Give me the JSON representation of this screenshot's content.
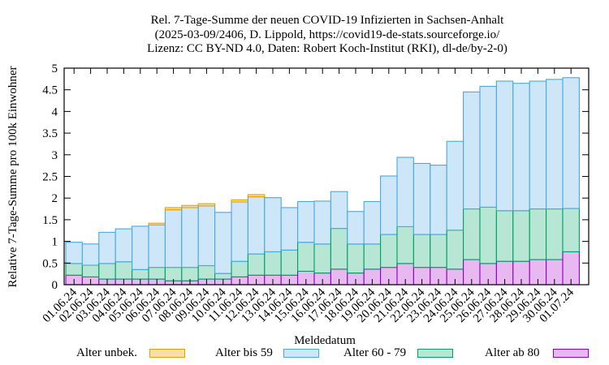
{
  "chart_data": {
    "type": "bar",
    "stacked": true,
    "title_lines": [
      "Rel. 7-Tage-Summe der neuen COVID-19 Infizierten in Sachsen-Anhalt",
      "(2025-03-09/2406, D. Lippold, https://covid19-de-stats.sourceforge.io/",
      "Lizenz: CC BY-ND 4.0, Daten: Robert Koch-Institut (RKI), dl-de/by-2-0)"
    ],
    "xlabel": "Meldedatum",
    "ylabel": "Relative 7-Tage-Summe pro 100k Einwohner",
    "ylim": [
      0,
      5
    ],
    "yticks": [
      "0",
      "0.5",
      "1",
      "1.5",
      "2",
      "2.5",
      "3",
      "3.5",
      "4",
      "4.5",
      "5"
    ],
    "grid": false,
    "legend_position": "bottom",
    "categories": [
      "01.06.24",
      "02.06.24",
      "03.06.24",
      "04.06.24",
      "05.06.24",
      "06.06.24",
      "07.06.24",
      "08.06.24",
      "09.06.24",
      "10.06.24",
      "11.06.24",
      "12.06.24",
      "13.06.24",
      "14.06.24",
      "15.06.24",
      "16.06.24",
      "17.06.24",
      "18.06.24",
      "19.06.24",
      "20.06.24",
      "21.06.24",
      "22.06.24",
      "23.06.24",
      "24.06.24",
      "25.06.24",
      "26.06.24",
      "27.06.24",
      "28.06.24",
      "29.06.24",
      "30.06.24",
      "01.07.24"
    ],
    "series": [
      {
        "name": "Alter ab 80",
        "color": "#e8b8f0",
        "stroke": "#8a00c8",
        "values": [
          0.22,
          0.18,
          0.13,
          0.13,
          0.13,
          0.13,
          0.09,
          0.09,
          0.13,
          0.13,
          0.18,
          0.22,
          0.22,
          0.22,
          0.31,
          0.27,
          0.36,
          0.27,
          0.36,
          0.4,
          0.49,
          0.4,
          0.4,
          0.36,
          0.58,
          0.49,
          0.54,
          0.54,
          0.58,
          0.58,
          0.76
        ]
      },
      {
        "name": "Alter 60 - 79",
        "color": "#b8e6d5",
        "stroke": "#00a060",
        "values": [
          0.27,
          0.27,
          0.36,
          0.4,
          0.22,
          0.27,
          0.31,
          0.31,
          0.31,
          0.13,
          0.36,
          0.49,
          0.54,
          0.58,
          0.67,
          0.67,
          0.94,
          0.67,
          0.58,
          0.76,
          0.85,
          0.76,
          0.76,
          0.9,
          1.17,
          1.3,
          1.17,
          1.17,
          1.17,
          1.17,
          1.0
        ]
      },
      {
        "name": "Alter bis 59",
        "color": "#cde6f8",
        "stroke": "#4aa8e0",
        "values": [
          0.49,
          0.49,
          0.72,
          0.76,
          1.0,
          0.98,
          1.33,
          1.38,
          1.38,
          1.41,
          1.37,
          1.32,
          1.25,
          0.98,
          0.94,
          0.99,
          0.85,
          0.75,
          0.98,
          1.35,
          1.6,
          1.64,
          1.6,
          2.05,
          2.7,
          2.79,
          2.99,
          2.94,
          2.95,
          2.99,
          3.02
        ]
      },
      {
        "name": "Alter unbek.",
        "color": "#f7deaa",
        "stroke": "#e8a000",
        "values": [
          0,
          0,
          0,
          0,
          0,
          0.04,
          0.05,
          0.05,
          0.05,
          0,
          0.05,
          0.05,
          0,
          0,
          0,
          0,
          0,
          0,
          0,
          0,
          0,
          0,
          0,
          0,
          0,
          0,
          0,
          0,
          0,
          0,
          0
        ]
      }
    ]
  },
  "legend": [
    {
      "name": "Alter unbek.",
      "color": "#f7deaa",
      "stroke": "#e8a000"
    },
    {
      "name": "Alter bis 59",
      "color": "#cde6f8",
      "stroke": "#4aa8e0"
    },
    {
      "name": "Alter 60 - 79",
      "color": "#b8e6d5",
      "stroke": "#00a060"
    },
    {
      "name": "Alter ab 80",
      "color": "#e8b8f0",
      "stroke": "#8a00c8"
    }
  ]
}
